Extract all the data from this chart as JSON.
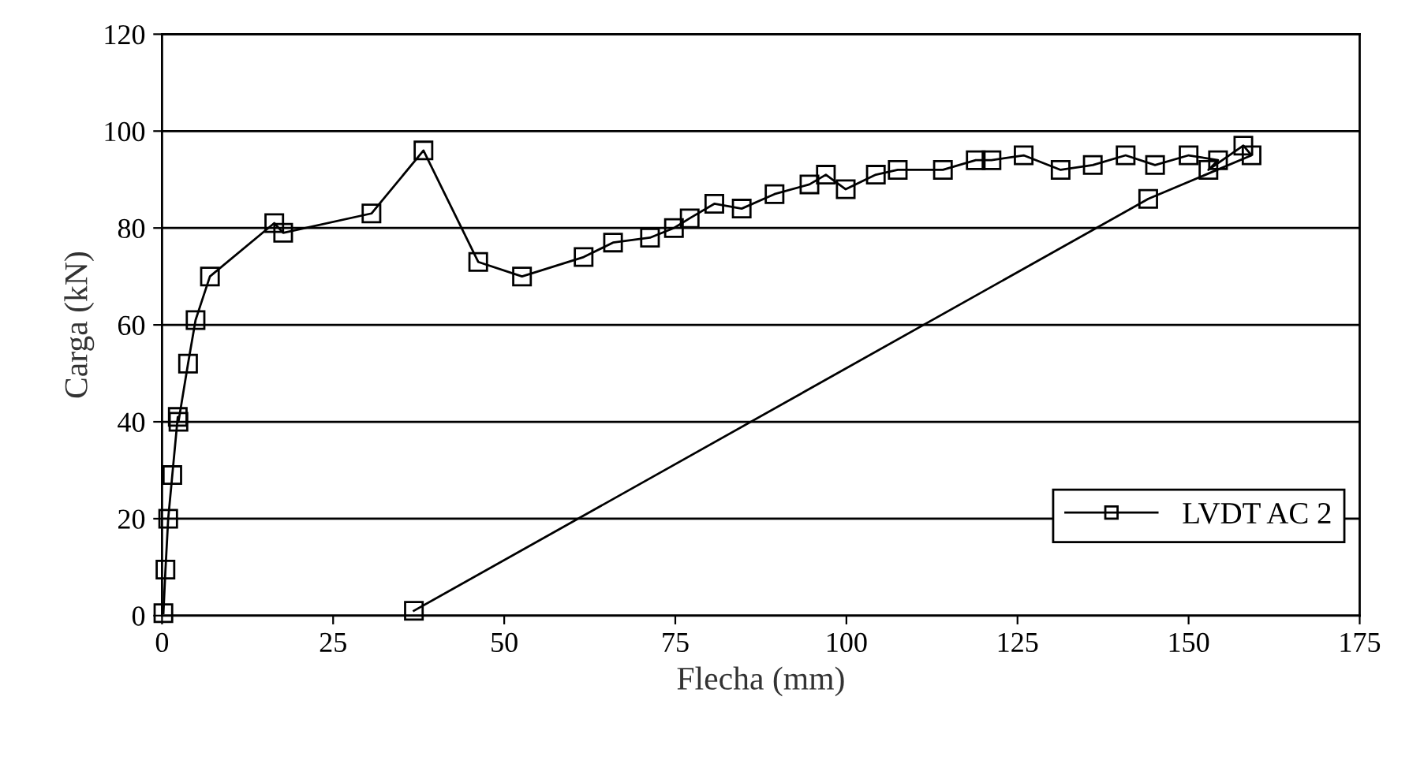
{
  "chart_data": {
    "type": "line",
    "xlabel": "Flecha (mm)",
    "ylabel": "Carga (kN)",
    "xlim": [
      0,
      175
    ],
    "ylim": [
      0,
      120
    ],
    "xticks": [
      0,
      25,
      50,
      75,
      100,
      125,
      150,
      175
    ],
    "yticks": [
      0,
      20,
      40,
      60,
      80,
      100,
      120
    ],
    "grid": "y",
    "legend": "bottom right",
    "marker": "square",
    "line_style": "solid",
    "series": [
      {
        "name": "LVDT AC 2",
        "color": "#000000",
        "x": [
          0.2,
          0.5,
          0.9,
          1.5,
          2.3,
          2.4,
          3.8,
          4.9,
          7.0,
          16.4,
          17.7,
          30.6,
          38.2,
          46.2,
          52.6,
          61.6,
          65.9,
          71.3,
          74.8,
          77.1,
          80.7,
          84.7,
          89.5,
          94.6,
          97.0,
          99.9,
          104.3,
          107.5,
          114.1,
          118.9,
          121.2,
          125.9,
          131.3,
          136.0,
          140.8,
          145.1,
          150.0,
          154.3,
          152.9,
          158.0,
          159.2,
          144.1,
          36.8
        ],
        "values": [
          0.5,
          9.5,
          20,
          29,
          41,
          40,
          52,
          61,
          70,
          81,
          79,
          83,
          96,
          73,
          70,
          74,
          77,
          78,
          80,
          82,
          85,
          84,
          87,
          89,
          91,
          88,
          91,
          92,
          92,
          94,
          94,
          95,
          92,
          93,
          95,
          93,
          95,
          94,
          92,
          97,
          95,
          86,
          1
        ]
      }
    ]
  }
}
